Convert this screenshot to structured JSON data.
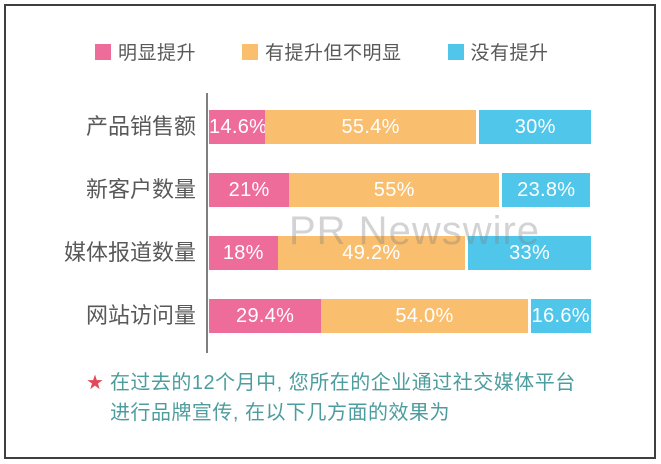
{
  "legend": {
    "items": [
      {
        "label": "明显提升",
        "color": "#ee6c99"
      },
      {
        "label": "有提升但不明显",
        "color": "#f9be6e"
      },
      {
        "label": "没有提升",
        "color": "#4fc6ea"
      }
    ]
  },
  "watermark": {
    "text": "PR Newswire"
  },
  "note": {
    "star": "★",
    "line1": "在过去的12个月中, 您所在的企业通过社交媒体平台",
    "line2": "进行品牌宣传, 在以下几方面的效果为",
    "star_color": "#e2485a",
    "text_color": "#4d9d9e"
  },
  "chart_data": {
    "type": "bar",
    "orientation": "horizontal-stacked",
    "title": "",
    "categories": [
      "产品销售额",
      "新客户数量",
      "媒体报道数量",
      "网站访问量"
    ],
    "series": [
      {
        "name": "明显提升",
        "color": "#ee6c99",
        "values": [
          14.6,
          21,
          18,
          29.4
        ],
        "labels": [
          "14.6%",
          "21%",
          "18%",
          "29.4%"
        ]
      },
      {
        "name": "有提升但不明显",
        "color": "#f9be6e",
        "values": [
          55.4,
          55,
          49.2,
          54.0
        ],
        "labels": [
          "55.4%",
          "55%",
          "49.2%",
          "54.0%"
        ]
      },
      {
        "name": "没有提升",
        "color": "#4fc6ea",
        "values": [
          30,
          23.8,
          33,
          16.6
        ],
        "labels": [
          "30%",
          "23.8%",
          "33%",
          "16.6%"
        ]
      }
    ],
    "xlim": [
      0,
      100
    ],
    "legend_position": "top",
    "grid": false,
    "axis_color": "#7f7f7f",
    "label_color": "#595959"
  }
}
